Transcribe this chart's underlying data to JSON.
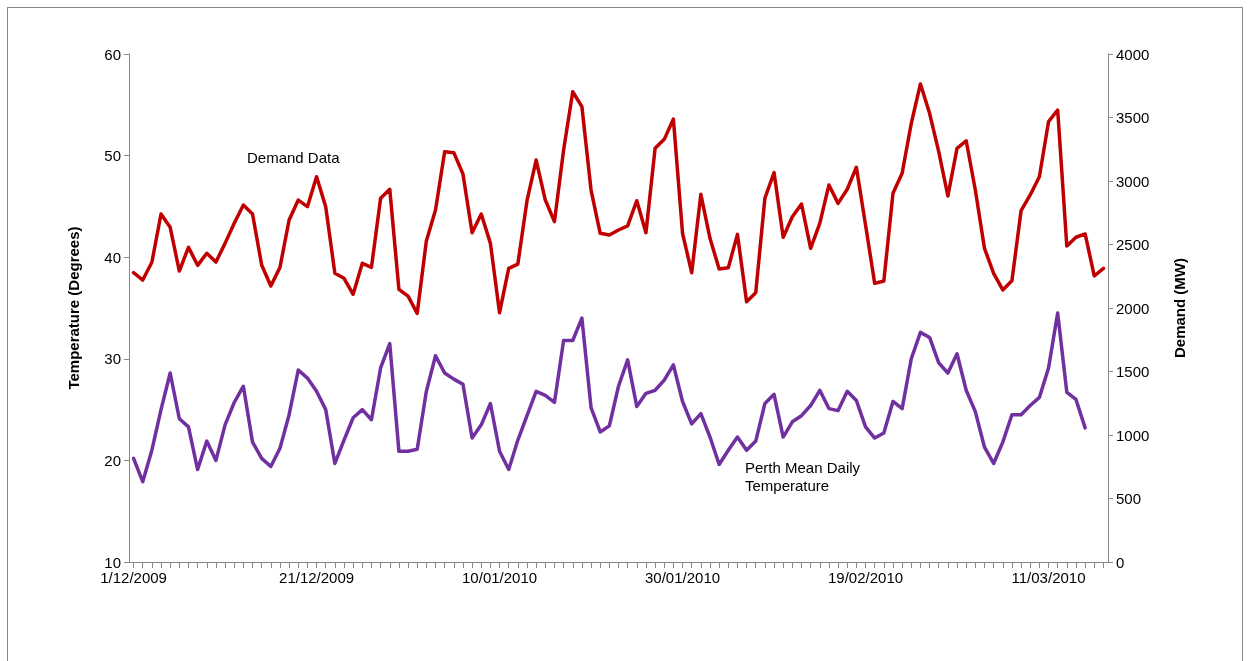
{
  "chart_data": {
    "type": "line",
    "xlabel": null,
    "ylabel": "Temperature (Degrees)",
    "y2label": "Demand (MW)",
    "x": [
      "2009-12-01",
      "2009-12-02",
      "2009-12-03",
      "2009-12-04",
      "2009-12-05",
      "2009-12-06",
      "2009-12-07",
      "2009-12-08",
      "2009-12-09",
      "2009-12-10",
      "2009-12-11",
      "2009-12-12",
      "2009-12-13",
      "2009-12-14",
      "2009-12-15",
      "2009-12-16",
      "2009-12-17",
      "2009-12-18",
      "2009-12-19",
      "2009-12-20",
      "2009-12-21",
      "2009-12-22",
      "2009-12-23",
      "2009-12-24",
      "2009-12-25",
      "2009-12-26",
      "2009-12-27",
      "2009-12-28",
      "2009-12-29",
      "2009-12-30",
      "2009-12-31",
      "2010-01-01",
      "2010-01-02",
      "2010-01-03",
      "2010-01-04",
      "2010-01-05",
      "2010-01-06",
      "2010-01-07",
      "2010-01-08",
      "2010-01-09",
      "2010-01-10",
      "2010-01-11",
      "2010-01-12",
      "2010-01-13",
      "2010-01-14",
      "2010-01-15",
      "2010-01-16",
      "2010-01-17",
      "2010-01-18",
      "2010-01-19",
      "2010-01-20",
      "2010-01-21",
      "2010-01-22",
      "2010-01-23",
      "2010-01-24",
      "2010-01-25",
      "2010-01-26",
      "2010-01-27",
      "2010-01-28",
      "2010-01-29",
      "2010-01-30",
      "2010-01-31",
      "2010-02-01",
      "2010-02-02",
      "2010-02-03",
      "2010-02-04",
      "2010-02-05",
      "2010-02-06",
      "2010-02-07",
      "2010-02-08",
      "2010-02-09",
      "2010-02-10",
      "2010-02-11",
      "2010-02-12",
      "2010-02-13",
      "2010-02-14",
      "2010-02-15",
      "2010-02-16",
      "2010-02-17",
      "2010-02-18",
      "2010-02-19",
      "2010-02-20",
      "2010-02-21",
      "2010-02-22",
      "2010-02-23",
      "2010-02-24",
      "2010-02-25",
      "2010-02-26",
      "2010-02-27",
      "2010-02-28",
      "2010-03-01",
      "2010-03-02",
      "2010-03-03",
      "2010-03-04",
      "2010-03-05",
      "2010-03-06",
      "2010-03-07",
      "2010-03-08",
      "2010-03-09",
      "2010-03-10",
      "2010-03-11",
      "2010-03-12",
      "2010-03-13",
      "2010-03-14",
      "2010-03-15",
      "2010-03-16",
      "2010-03-17"
    ],
    "series": [
      {
        "name": "Demand Data",
        "color": "#c00000",
        "axis": "y2",
        "values": [
          2278,
          2220,
          2360,
          2740,
          2635,
          2291,
          2478,
          2336,
          2431,
          2362,
          2509,
          2667,
          2811,
          2740,
          2339,
          2173,
          2320,
          2693,
          2850,
          2798,
          3034,
          2798,
          2273,
          2234,
          2108,
          2352,
          2320,
          2864,
          2935,
          2147,
          2094,
          1958,
          2528,
          2772,
          3231,
          3223,
          3055,
          2593,
          2740,
          2509,
          1963,
          2312,
          2346,
          2845,
          3165,
          2850,
          2680,
          3244,
          3703,
          3585,
          2929,
          2588,
          2575,
          2614,
          2646,
          2845,
          2593,
          3257,
          3328,
          3488,
          2588,
          2278,
          2895,
          2549,
          2307,
          2317,
          2580,
          2050,
          2121,
          2864,
          3066,
          2557,
          2719,
          2819,
          2470,
          2667,
          2969,
          2824,
          2935,
          3108,
          2654,
          2194,
          2213,
          2903,
          3061,
          3454,
          3764,
          3533,
          3231,
          2882,
          3257,
          3317,
          2929,
          2470,
          2273,
          2142,
          2215,
          2766,
          2890,
          3034,
          3467,
          3559,
          2488,
          2557,
          2583,
          2252,
          2312
        ]
      },
      {
        "name": "Perth Mean Daily Temperature",
        "color": "#7030a0",
        "axis": "y",
        "values": [
          20.2,
          17.9,
          21.0,
          25.0,
          28.6,
          24.1,
          23.3,
          19.1,
          21.9,
          20.0,
          23.5,
          25.7,
          27.3,
          21.8,
          20.2,
          19.4,
          21.2,
          24.5,
          28.9,
          28.1,
          26.8,
          25.0,
          19.7,
          22.0,
          24.2,
          25.0,
          24.0,
          29.1,
          31.5,
          20.9,
          20.9,
          21.1,
          26.8,
          30.3,
          28.6,
          28.0,
          27.5,
          22.2,
          23.5,
          25.6,
          20.9,
          19.1,
          22.0,
          24.4,
          26.8,
          26.4,
          25.7,
          31.8,
          31.8,
          34.0,
          25.2,
          22.8,
          23.4,
          27.3,
          29.9,
          25.3,
          26.6,
          26.9,
          27.9,
          29.4,
          25.8,
          23.6,
          24.6,
          22.3,
          19.6,
          21.0,
          22.3,
          21.0,
          21.9,
          25.6,
          26.5,
          22.3,
          23.8,
          24.4,
          25.4,
          26.9,
          25.1,
          24.9,
          26.8,
          25.9,
          23.3,
          22.2,
          22.7,
          25.8,
          25.1,
          30.0,
          32.6,
          32.1,
          29.6,
          28.6,
          30.5,
          26.9,
          24.8,
          21.3,
          19.7,
          21.8,
          24.5,
          24.5,
          25.4,
          26.2,
          29.1,
          34.5,
          26.7,
          26.0,
          23.2,
          null,
          null
        ]
      }
    ],
    "xlim": [
      "2009-11-30T12:00",
      "2010-03-17T12:00"
    ],
    "xticks": [
      {
        "value": "2009-12-01",
        "label": "1/12/2009"
      },
      {
        "value": "2009-12-21",
        "label": "21/12/2009"
      },
      {
        "value": "2010-01-10",
        "label": "10/01/2010"
      },
      {
        "value": "2010-01-30",
        "label": "30/01/2010"
      },
      {
        "value": "2010-02-19",
        "label": "19/02/2010"
      },
      {
        "value": "2010-03-11",
        "label": "11/03/2010"
      }
    ],
    "ylim": [
      10,
      60
    ],
    "yticks": [
      10,
      20,
      30,
      40,
      50,
      60
    ],
    "y2lim": [
      0,
      4000
    ],
    "y2ticks": [
      0,
      500,
      1000,
      1500,
      2000,
      2500,
      3000,
      3500,
      4000
    ],
    "grid": false,
    "legend": false,
    "marker": "none",
    "line_style": "solid"
  }
}
